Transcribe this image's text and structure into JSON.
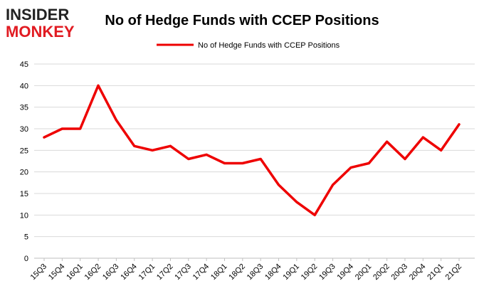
{
  "logo": {
    "line1": "INSIDER",
    "line2": "MONKEY",
    "color_dark": "#222222",
    "color_accent": "#e11b22"
  },
  "chart_data": {
    "type": "line",
    "title": "No of Hedge Funds with CCEP Positions",
    "xlabel": "",
    "ylabel": "",
    "categories": [
      "15Q3",
      "15Q4",
      "16Q1",
      "16Q2",
      "16Q3",
      "16Q4",
      "17Q1",
      "17Q2",
      "17Q3",
      "17Q4",
      "18Q1",
      "18Q2",
      "18Q3",
      "18Q4",
      "19Q1",
      "19Q2",
      "19Q3",
      "19Q4",
      "20Q1",
      "20Q2",
      "20Q3",
      "20Q4",
      "21Q1",
      "21Q2"
    ],
    "series": [
      {
        "name": "No of Hedge Funds with CCEP Positions",
        "color": "#ee0000",
        "values": [
          28,
          30,
          30,
          40,
          32,
          26,
          25,
          26,
          23,
          24,
          22,
          22,
          23,
          17,
          13,
          10,
          17,
          21,
          22,
          27,
          23,
          28,
          25,
          31
        ]
      }
    ],
    "ylim": [
      0,
      45
    ],
    "yticks": [
      0,
      5,
      10,
      15,
      20,
      25,
      30,
      35,
      40,
      45
    ],
    "grid": true,
    "legend_position": "top-center"
  }
}
